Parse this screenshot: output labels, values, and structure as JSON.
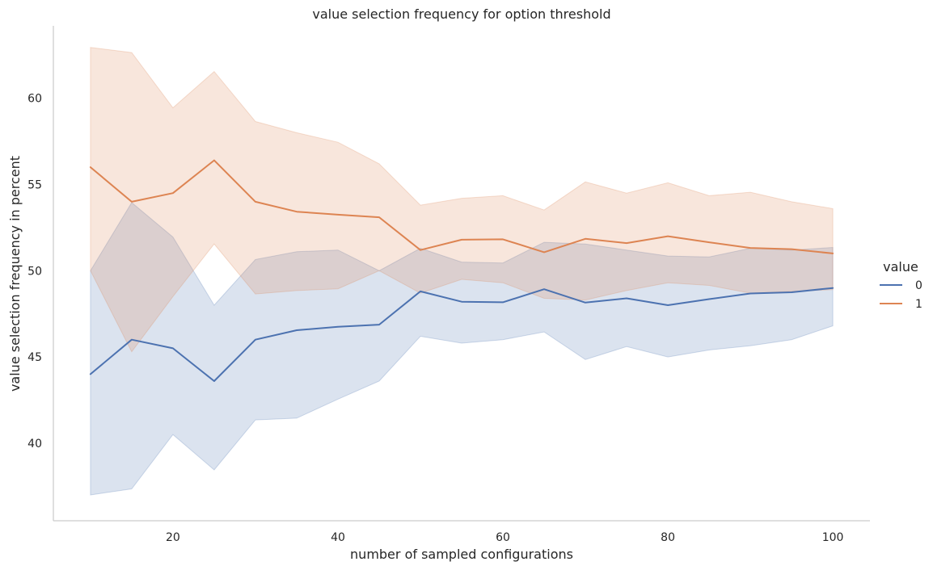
{
  "chart_data": {
    "type": "line",
    "title": "value selection frequency for option threshold",
    "xlabel": "number of sampled configurations",
    "ylabel": "value selection frequency in percent",
    "xlim": [
      5.5,
      104.5
    ],
    "ylim": [
      35.5,
      64.2
    ],
    "xticks": [
      20,
      40,
      60,
      80,
      100
    ],
    "yticks": [
      40,
      45,
      50,
      55,
      60
    ],
    "grid": false,
    "legend": {
      "title": "value",
      "placement": "right"
    },
    "x": [
      10,
      15,
      20,
      25,
      30,
      35,
      40,
      45,
      50,
      55,
      60,
      65,
      70,
      75,
      80,
      85,
      90,
      95,
      100
    ],
    "series": [
      {
        "name": "0",
        "color": "#4c72b0",
        "values": [
          44.0,
          46.0,
          45.5,
          43.6,
          46.0,
          46.55,
          46.75,
          46.87,
          48.8,
          48.2,
          48.17,
          48.93,
          48.15,
          48.4,
          48.0,
          48.35,
          48.68,
          48.75,
          49.0
        ],
        "ci_low": [
          37.0,
          37.35,
          40.5,
          38.45,
          41.35,
          41.45,
          42.55,
          43.6,
          46.2,
          45.8,
          46.0,
          46.45,
          44.85,
          45.6,
          45.0,
          45.4,
          45.65,
          46.0,
          46.8
        ],
        "ci_high": [
          50.0,
          53.95,
          51.95,
          48.0,
          50.65,
          51.1,
          51.2,
          50.0,
          51.3,
          50.5,
          50.45,
          51.65,
          51.55,
          51.2,
          50.85,
          50.8,
          51.3,
          51.2,
          51.35
        ]
      },
      {
        "name": "1",
        "color": "#dd8452",
        "values": [
          56.0,
          54.0,
          54.5,
          56.4,
          54.0,
          53.42,
          53.25,
          53.1,
          51.2,
          51.8,
          51.82,
          51.07,
          51.85,
          51.6,
          52.0,
          51.65,
          51.32,
          51.25,
          51.0
        ],
        "ci_low": [
          50.0,
          45.3,
          48.5,
          51.55,
          48.65,
          48.85,
          48.95,
          50.0,
          48.7,
          49.5,
          49.3,
          48.4,
          48.3,
          48.85,
          49.3,
          49.15,
          48.7,
          48.8,
          48.9
        ],
        "ci_high": [
          62.95,
          62.65,
          59.45,
          61.55,
          58.65,
          58.0,
          57.45,
          56.2,
          53.8,
          54.2,
          54.35,
          53.52,
          55.15,
          54.5,
          55.1,
          54.35,
          54.55,
          54.0,
          53.6
        ]
      }
    ]
  }
}
